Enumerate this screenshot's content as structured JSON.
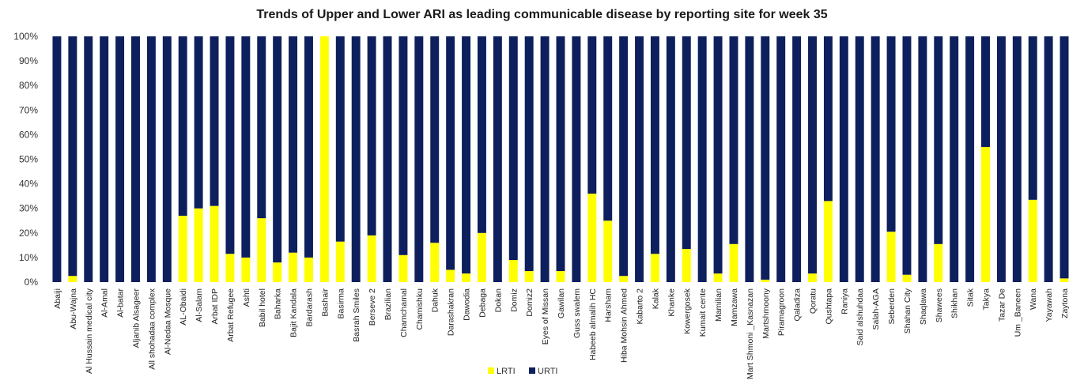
{
  "chart_data": {
    "type": "bar",
    "stacked": true,
    "percent_stacked": true,
    "title": "Trends of Upper and Lower ARI as leading communicable disease by reporting site for week 35",
    "xlabel": "",
    "ylabel": "",
    "ylim": [
      0,
      100
    ],
    "y_ticks": [
      "0%",
      "10%",
      "20%",
      "30%",
      "40%",
      "50%",
      "60%",
      "70%",
      "80%",
      "90%",
      "100%"
    ],
    "grid": false,
    "legend_position": "bottom",
    "categories": [
      "Abaiji",
      "Abu-Wajna",
      "Al Hussain medical city",
      "Al-Amal",
      "Al-batar",
      "Aljanib Alsageer",
      "All shohadaa complex",
      "Al-Nedaa Mosque",
      "AL-Obaidi",
      "Al-Salam",
      "Arbat IDP",
      "Arbat Refugee",
      "Ashti",
      "Babil hotel",
      "Baharka",
      "Bajit Kandala",
      "Bardarash",
      "Bashair",
      "Basirma",
      "Basrah Smiles",
      "Berseve 2",
      "Brazilian",
      "Chamchamal",
      "Chamishku",
      "Dahuk",
      "Darashakran",
      "Dawodia",
      "Debaga",
      "Dokan",
      "Domiz",
      "Domiz2",
      "Eyes of Missan",
      "Gawilan",
      "Guss swalem",
      "Habeeb almalih HC",
      "Harsham",
      "Hiba Mohsin Ahmed",
      "Kabarto 2",
      "Kalak",
      "Khanke",
      "Kowergosek",
      "Kumait cente",
      "Mamilian",
      "Mamzawa",
      "Mart Shmoni _Kasnazan",
      "Martshmoony",
      "Piramagroon",
      "Qaladiza",
      "Qoratu",
      "Qushtapa",
      "Raniya",
      "Said alshuhdaa",
      "Salah-AGA",
      "Seberden",
      "Shahan City",
      "Shaqlawa",
      "Shawees",
      "Shikhan",
      "Sitak",
      "Takya",
      "Tazar De",
      "Um _Baneen",
      "Wana",
      "Yayawah",
      "Zaytona"
    ],
    "series": [
      {
        "name": "LRTI",
        "color": "#FFFF00",
        "values": [
          0,
          2.5,
          0,
          0,
          0,
          0,
          0,
          0,
          27,
          30,
          31,
          11.5,
          10,
          26,
          8,
          12,
          10,
          100,
          16.5,
          0,
          19,
          0,
          11,
          0,
          16,
          5,
          3.5,
          20,
          0,
          9,
          4.5,
          0,
          4.5,
          0,
          36,
          25,
          2.5,
          0,
          11.5,
          0,
          13.5,
          0,
          3.5,
          15.5,
          0,
          1,
          0,
          0,
          3.5,
          33,
          0,
          0,
          0,
          20.5,
          3,
          0,
          15.5,
          0,
          0,
          55,
          0,
          0,
          33.5,
          0,
          1.5
        ]
      },
      {
        "name": "URTI",
        "color": "#0D1F5C",
        "values": [
          100,
          97.5,
          100,
          100,
          100,
          100,
          100,
          100,
          73,
          70,
          69,
          88.5,
          90,
          74,
          92,
          88,
          90,
          0,
          83.5,
          100,
          81,
          100,
          89,
          100,
          84,
          95,
          96.5,
          80,
          100,
          91,
          95.5,
          100,
          95.5,
          100,
          64,
          75,
          97.5,
          100,
          88.5,
          100,
          86.5,
          100,
          96.5,
          84.5,
          100,
          99,
          100,
          100,
          96.5,
          67,
          100,
          100,
          100,
          79.5,
          97,
          100,
          84.5,
          100,
          100,
          45,
          100,
          100,
          66.5,
          100,
          98.5
        ]
      }
    ]
  }
}
